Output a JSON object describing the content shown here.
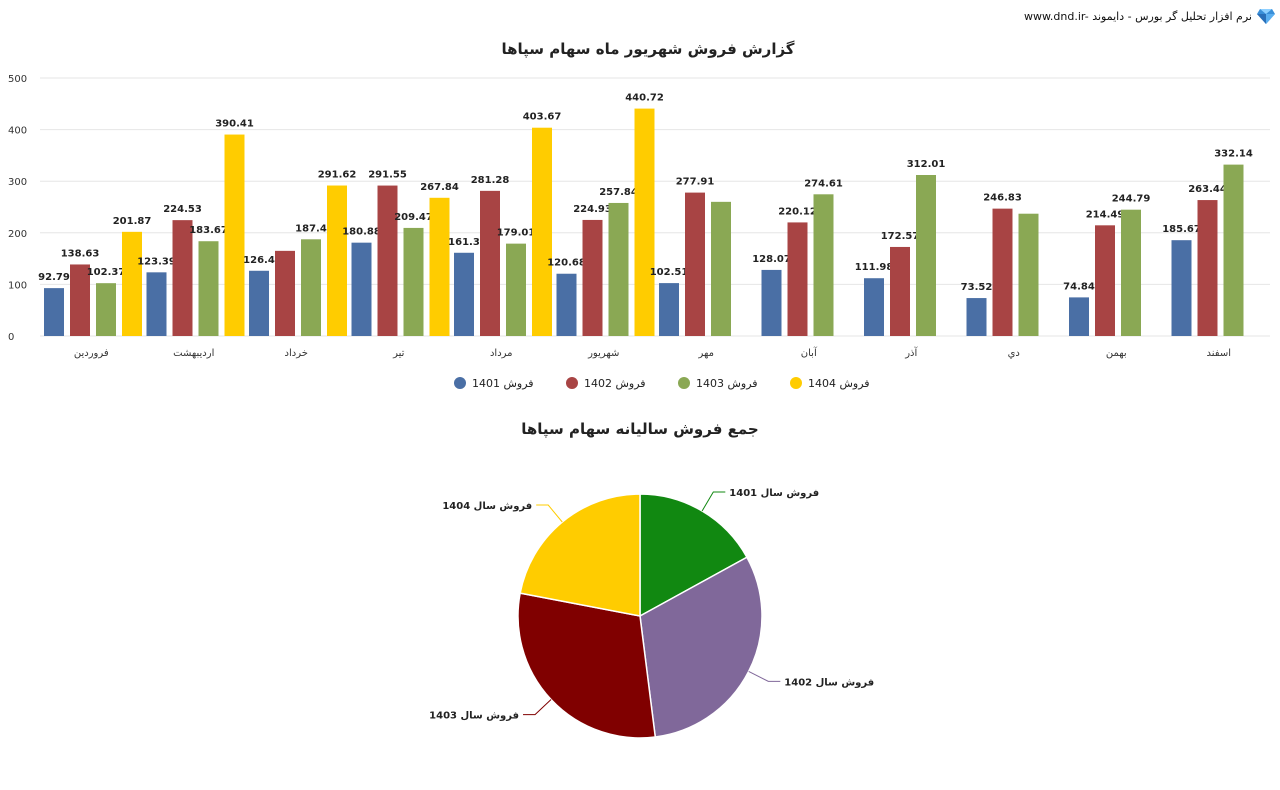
{
  "brand": {
    "text": "www.dnd.ir- نرم افزار تحلیل گر بورس - دایموند",
    "icon": "diamond-icon"
  },
  "colors": {
    "s1401": "#4a6fa5",
    "s1402": "#a84444",
    "s1403": "#8aa854",
    "s1404": "#ffcc00",
    "pie1401": "#118811",
    "pie1402": "#80689a",
    "pie1403": "#800000",
    "pie1404": "#ffcc00"
  },
  "chart_data": [
    {
      "type": "bar",
      "title": "گزارش فروش شهریور ماه سهام سپاها",
      "categories": [
        "فروردین",
        "اردیبهشت",
        "خرداد",
        "تیر",
        "مرداد",
        "شهریور",
        "مهر",
        "آبان",
        "آذر",
        "دي",
        "بهمن",
        "اسفند"
      ],
      "ylim": [
        0,
        500
      ],
      "yticks": [
        0,
        100,
        200,
        300,
        400,
        500
      ],
      "grid": true,
      "legend_position": "bottom",
      "series": [
        {
          "name": "فروش 1401",
          "color_key": "s1401",
          "values": [
            92.79,
            123.39,
            126.4,
            180.88,
            161.3,
            120.68,
            102.51,
            128.07,
            111.98,
            73.52,
            74.84,
            185.67
          ],
          "labels": [
            "92.79",
            "123.39",
            "126.4",
            "180.88",
            "161.3",
            "120.68",
            "102.51",
            "128.07",
            "111.98",
            "73.52",
            "74.84",
            "185.67"
          ]
        },
        {
          "name": "فروش 1402",
          "color_key": "s1402",
          "values": [
            138.63,
            224.53,
            165,
            291.55,
            281.28,
            224.93,
            277.91,
            220.12,
            172.57,
            246.83,
            214.49,
            263.44
          ],
          "labels": [
            "138.63",
            "224.53",
            "",
            "291.55",
            "281.28",
            "224.93",
            "277.91",
            "220.12",
            "172.57",
            "246.83",
            "214.49",
            "263.44"
          ]
        },
        {
          "name": "فروش 1403",
          "color_key": "s1403",
          "values": [
            102.37,
            183.67,
            187.4,
            209.47,
            179.01,
            257.84,
            260,
            274.61,
            312.01,
            237,
            244.79,
            332.14
          ],
          "labels": [
            "102.37",
            "183.67",
            "187.4",
            "209.47",
            "179.01",
            "257.84",
            "",
            "274.61",
            "312.01",
            "",
            "244.79",
            "332.14"
          ]
        },
        {
          "name": "فروش 1404",
          "color_key": "s1404",
          "values": [
            201.87,
            390.41,
            291.62,
            267.84,
            403.67,
            440.72,
            null,
            null,
            null,
            null,
            null,
            null
          ],
          "labels": [
            "201.87",
            "390.41",
            "291.62",
            "267.84",
            "403.67",
            "440.72",
            "",
            "",
            "",
            "",
            "",
            ""
          ]
        }
      ]
    },
    {
      "type": "pie",
      "title": "جمع فروش سالیانه سهام سپاها",
      "slices": [
        {
          "label": "فروش سال 1401",
          "value": 17,
          "color_key": "pie1401"
        },
        {
          "label": "فروش سال 1402",
          "value": 31,
          "color_key": "pie1402"
        },
        {
          "label": "فروش سال 1403",
          "value": 30,
          "color_key": "pie1403"
        },
        {
          "label": "فروش سال 1404",
          "value": 22,
          "color_key": "pie1404"
        }
      ]
    }
  ]
}
